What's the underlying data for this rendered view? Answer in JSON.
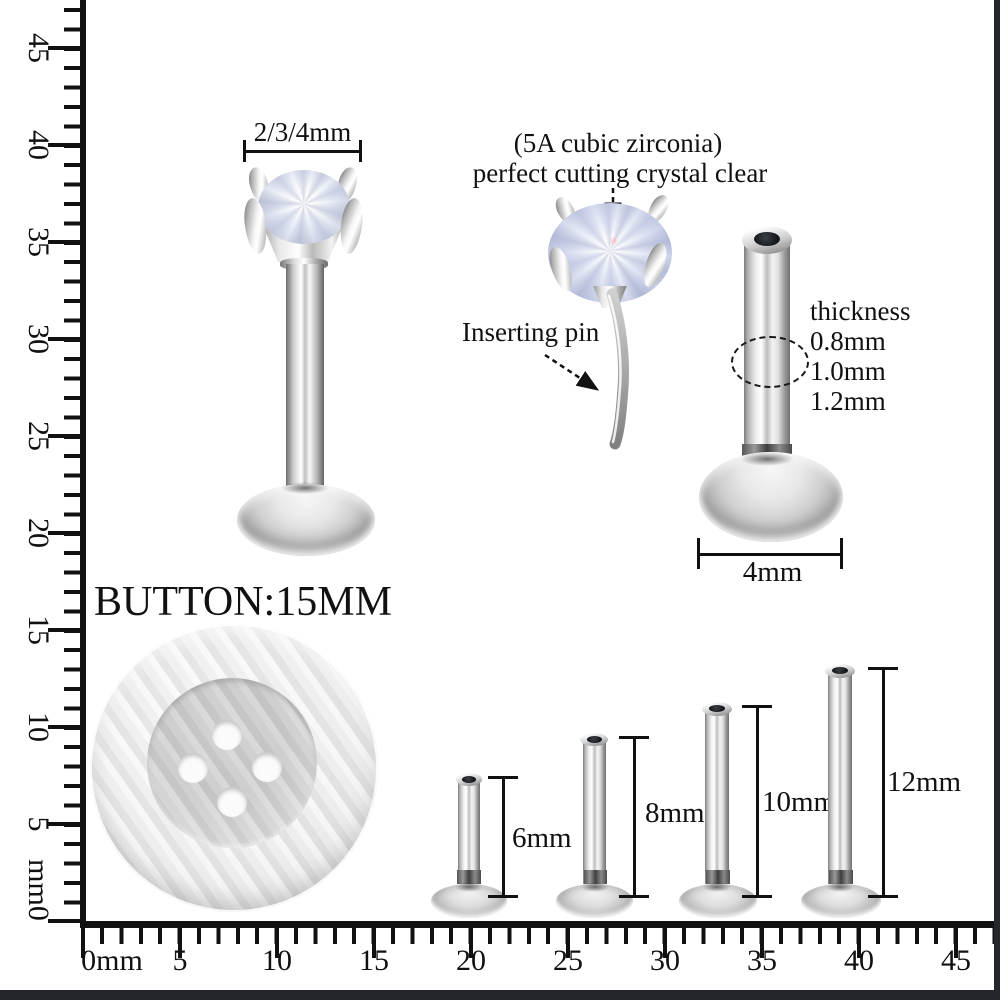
{
  "figure": {
    "stud": {
      "width_label": "2/3/4mm"
    },
    "gem": {
      "line1": "(5A cubic zirconia)",
      "line2": "perfect cutting crystal clear",
      "pin_label": "Inserting pin"
    },
    "post": {
      "thickness_title": "thickness",
      "thickness_options": [
        "0.8mm",
        "1.0mm",
        "1.2mm"
      ],
      "base_width_label": "4mm"
    },
    "button": {
      "label": "BUTTON:15MM"
    },
    "size_posts": [
      {
        "length": "6mm"
      },
      {
        "length": "8mm"
      },
      {
        "length": "10mm"
      },
      {
        "length": "12mm"
      }
    ]
  },
  "ruler_vertical": {
    "labels": [
      "45",
      "40",
      "35",
      "30",
      "25",
      "20",
      "15",
      "10",
      "5"
    ],
    "zero_label": "mm0"
  },
  "ruler_horizontal": {
    "labels": [
      "0mm",
      "5",
      "10",
      "15",
      "20",
      "25",
      "30",
      "35",
      "40",
      "45"
    ]
  },
  "colors": {
    "tick": "#111111",
    "text": "#111111",
    "background": "#ffffff",
    "edge_strip": "#23272b"
  }
}
